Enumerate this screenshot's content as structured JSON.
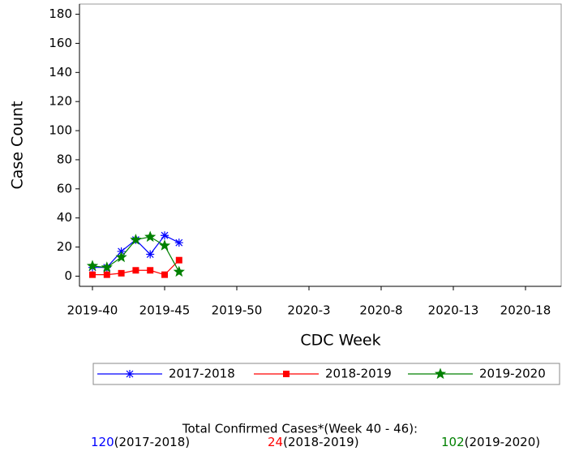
{
  "chart_data": {
    "type": "line",
    "x_label": "CDC Week",
    "y_label": "Case Count",
    "categories": [
      "2019-40",
      null,
      null,
      null,
      null,
      "2019-45",
      null,
      null,
      null,
      null,
      "2019-50",
      null,
      null,
      null,
      null,
      "2020-3",
      null,
      null,
      null,
      null,
      "2020-8",
      null,
      null,
      null,
      null,
      "2020-13",
      null,
      null,
      null,
      null,
      "2020-18",
      null,
      null
    ],
    "ylim": [
      -7,
      187
    ],
    "yticks": [
      0,
      20,
      40,
      60,
      80,
      100,
      120,
      140,
      160,
      180
    ],
    "series": [
      {
        "name": "2017-2018",
        "color": "#0000ff",
        "marker": "asterisk",
        "values": [
          6,
          6,
          17,
          25,
          15,
          28,
          23,
          null,
          null,
          null,
          null,
          null,
          null,
          null,
          null,
          null,
          null,
          null,
          null,
          null,
          null,
          null,
          null,
          null,
          null,
          null,
          null,
          null,
          null,
          null,
          null,
          null,
          null
        ]
      },
      {
        "name": "2018-2019",
        "color": "#ff0000",
        "marker": "square",
        "values": [
          1,
          1,
          2,
          4,
          4,
          1,
          11,
          null,
          null,
          null,
          null,
          null,
          null,
          null,
          null,
          null,
          null,
          null,
          null,
          null,
          null,
          null,
          null,
          null,
          null,
          null,
          null,
          null,
          null,
          null,
          null,
          null,
          null
        ]
      },
      {
        "name": "2019-2020",
        "color": "#008000",
        "marker": "star",
        "values": [
          7,
          6,
          13,
          25,
          27,
          21,
          3,
          null,
          null,
          null,
          null,
          null,
          null,
          null,
          null,
          null,
          null,
          null,
          null,
          null,
          null,
          null,
          null,
          null,
          null,
          null,
          null,
          null,
          null,
          null,
          null,
          null,
          null
        ]
      }
    ],
    "footer": {
      "title": "Total Confirmed Cases*(Week 40 - 46):",
      "totals": [
        {
          "value": 120,
          "label": "(2017-2018)"
        },
        {
          "value": 24,
          "label": "(2018-2019)"
        },
        {
          "value": 102,
          "label": "(2019-2020)"
        }
      ]
    }
  }
}
